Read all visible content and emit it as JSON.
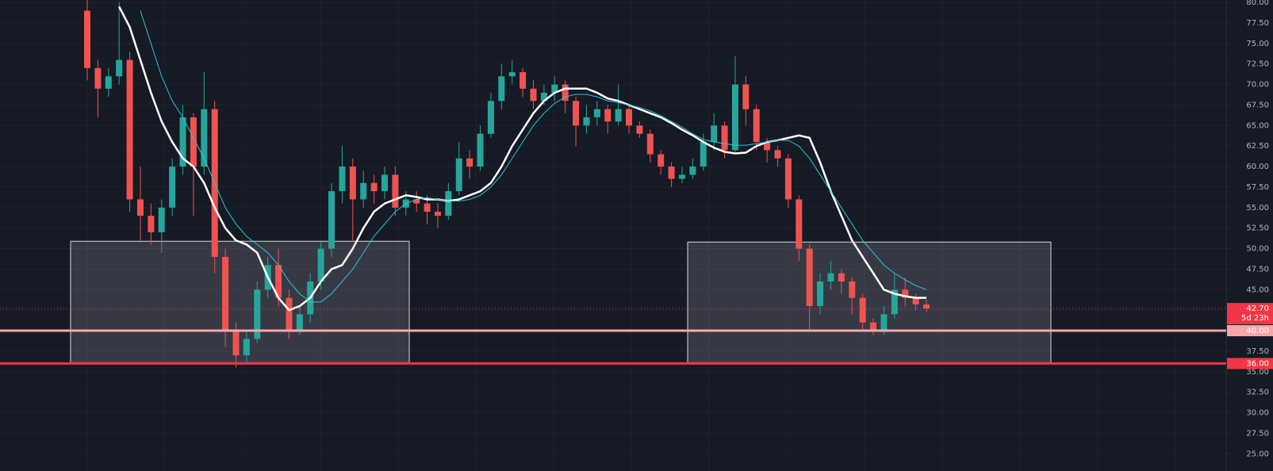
{
  "chart_data": {
    "type": "candlestick",
    "ylim": [
      22.9,
      80.3
    ],
    "yticks": [
      {
        "value": 25,
        "label": "25.00"
      },
      {
        "value": 27.5,
        "label": "27.50"
      },
      {
        "value": 30,
        "label": "30.00"
      },
      {
        "value": 32.5,
        "label": "32.50"
      },
      {
        "value": 35,
        "label": "35.00"
      },
      {
        "value": 37.5,
        "label": "37.50"
      },
      {
        "value": 40,
        "label": "40.00"
      },
      {
        "value": 42.5,
        "label": "42.50"
      },
      {
        "value": 45,
        "label": "45.00"
      },
      {
        "value": 47.5,
        "label": "47.50"
      },
      {
        "value": 50,
        "label": "50.00"
      },
      {
        "value": 52.5,
        "label": "52.50"
      },
      {
        "value": 55,
        "label": "55.00"
      },
      {
        "value": 57.5,
        "label": "57.50"
      },
      {
        "value": 60,
        "label": "60.00"
      },
      {
        "value": 62.5,
        "label": "62.50"
      },
      {
        "value": 65,
        "label": "65.00"
      },
      {
        "value": 67.5,
        "label": "67.50"
      },
      {
        "value": 70,
        "label": "70.00"
      },
      {
        "value": 72.5,
        "label": "72.50"
      },
      {
        "value": 75,
        "label": "75.00"
      },
      {
        "value": 77.5,
        "label": "77.50"
      },
      {
        "value": 80,
        "label": "80.00"
      }
    ],
    "grid": true,
    "up_color": "#26a69a",
    "down_color": "#ef5350",
    "candles": {
      "open": [
        79.0,
        72.0,
        69.5,
        71.0,
        73.0,
        56.0,
        54.0,
        52.0,
        55.0,
        60.0,
        66.0,
        60.0,
        67.0,
        49.0,
        40.0,
        37.0,
        39.0,
        45.0,
        48.0,
        44.0,
        40.0,
        42.0,
        46.0,
        50.0,
        57.0,
        60.0,
        56.0,
        58.0,
        57.0,
        59.0,
        55.0,
        56.0,
        55.5,
        54.5,
        54.0,
        57.0,
        61.0,
        60.0,
        64.0,
        68.0,
        71.0,
        71.5,
        69.5,
        68.0,
        69.0,
        70.0,
        68.0,
        65.0,
        66.0,
        67.0,
        65.5,
        67.0,
        65.0,
        64.0,
        61.5,
        60.0,
        58.5,
        59.0,
        60.0,
        63.0,
        65.0,
        62.0,
        70.0,
        67.0,
        63.0,
        62.0,
        61.0,
        56.0,
        50.0,
        43.0,
        46.0,
        47.0,
        46.0,
        44.0,
        41.0,
        40.0,
        42.0,
        45.0,
        44.0,
        43.2
      ],
      "high": [
        80.5,
        73.0,
        72.0,
        80.0,
        74.0,
        60.0,
        55.5,
        56.0,
        61.0,
        67.5,
        66.5,
        71.5,
        68.0,
        50.0,
        41.0,
        40.0,
        46.0,
        49.0,
        50.0,
        45.0,
        43.0,
        47.0,
        51.0,
        58.0,
        62.5,
        61.0,
        59.5,
        59.0,
        60.0,
        60.0,
        57.0,
        57.0,
        56.5,
        55.5,
        58.0,
        63.0,
        62.0,
        65.0,
        69.0,
        72.5,
        73.0,
        72.0,
        70.5,
        70.0,
        71.0,
        70.5,
        68.5,
        67.5,
        68.0,
        67.5,
        70.0,
        67.5,
        65.5,
        64.5,
        62.0,
        60.5,
        60.0,
        61.0,
        64.0,
        66.5,
        65.5,
        73.5,
        71.0,
        67.5,
        63.5,
        62.5,
        61.5,
        56.5,
        50.5,
        47.0,
        48.5,
        47.5,
        46.5,
        44.5,
        41.5,
        43.0,
        47.0,
        46.5,
        44.5,
        43.8
      ],
      "low": [
        70.5,
        66.0,
        68.5,
        70.0,
        54.5,
        51.0,
        50.5,
        49.5,
        54.0,
        59.0,
        54.0,
        59.0,
        47.0,
        38.0,
        35.5,
        36.0,
        38.5,
        44.0,
        43.0,
        39.0,
        39.5,
        41.0,
        45.0,
        49.0,
        55.5,
        51.0,
        55.0,
        55.5,
        56.0,
        54.0,
        54.0,
        54.5,
        53.0,
        52.5,
        53.5,
        56.5,
        58.5,
        59.5,
        63.5,
        67.0,
        70.0,
        68.5,
        67.0,
        67.5,
        68.0,
        66.5,
        62.5,
        64.0,
        65.0,
        64.0,
        65.0,
        64.0,
        63.5,
        60.5,
        59.0,
        57.5,
        58.0,
        58.5,
        59.5,
        62.0,
        61.0,
        61.5,
        65.0,
        62.0,
        60.5,
        60.0,
        55.0,
        48.5,
        40.0,
        42.0,
        45.0,
        44.5,
        42.0,
        40.0,
        39.5,
        39.5,
        41.5,
        43.0,
        42.5,
        42.3
      ],
      "close": [
        72.0,
        69.5,
        71.0,
        73.0,
        56.0,
        54.0,
        52.0,
        55.0,
        60.0,
        66.0,
        60.0,
        67.0,
        49.0,
        40.0,
        37.0,
        39.0,
        45.0,
        48.0,
        44.0,
        40.0,
        42.0,
        46.0,
        50.0,
        57.0,
        60.0,
        56.0,
        58.0,
        57.0,
        59.0,
        55.0,
        56.0,
        55.5,
        54.5,
        54.0,
        57.0,
        61.0,
        60.0,
        64.0,
        68.0,
        71.0,
        71.5,
        69.5,
        68.0,
        69.0,
        70.0,
        68.0,
        65.0,
        66.0,
        67.0,
        65.5,
        67.0,
        65.0,
        64.0,
        61.5,
        60.0,
        58.5,
        59.0,
        60.0,
        63.0,
        65.0,
        62.0,
        70.0,
        67.0,
        63.0,
        62.0,
        61.0,
        56.0,
        50.0,
        43.0,
        46.0,
        47.0,
        46.0,
        44.0,
        41.0,
        40.0,
        42.0,
        45.0,
        44.0,
        43.2,
        42.7
      ]
    },
    "moving_averages": [
      {
        "color": "#ffffff",
        "values": [
          null,
          null,
          null,
          79.5,
          77,
          73,
          69,
          65.5,
          63,
          61,
          60,
          58,
          55,
          52.5,
          51,
          50.5,
          49.5,
          46.5,
          44,
          42.5,
          43,
          44,
          46,
          47.5,
          48,
          50,
          52.5,
          54.5,
          55.5,
          56,
          56.5,
          56.3,
          56,
          56,
          55.8,
          56,
          56.5,
          57,
          58,
          60,
          62.5,
          64.5,
          66.5,
          68,
          69,
          69.5,
          69.5,
          69.5,
          69,
          68.3,
          68,
          67.5,
          67,
          66.5,
          66,
          65.3,
          64.5,
          63.8,
          63,
          62.3,
          61.8,
          61.6,
          61.7,
          62.5,
          63,
          63.2,
          63.5,
          63.8,
          63.5,
          60.5,
          57,
          54,
          51,
          49,
          47,
          45,
          44.5,
          44.2,
          44,
          44
        ]
      },
      {
        "color": "#26c6da",
        "values": [
          null,
          null,
          null,
          null,
          null,
          79,
          75,
          71,
          68,
          66,
          63.5,
          61,
          58,
          55,
          53,
          51.5,
          50.5,
          49.5,
          48,
          46,
          44.5,
          43.5,
          43.5,
          44.5,
          46,
          47.5,
          49.5,
          51.5,
          53,
          54.5,
          55.5,
          56,
          56.2,
          56,
          55.8,
          55.8,
          56,
          56.5,
          57.5,
          59,
          61,
          63,
          65,
          66.5,
          67.7,
          68.5,
          68.8,
          68.8,
          68.5,
          68,
          67.8,
          67.5,
          67.2,
          66.8,
          66.2,
          65.5,
          64.8,
          64,
          63.3,
          63,
          62.8,
          62.6,
          62.6,
          62.8,
          63,
          63.2,
          63.2,
          62.5,
          61,
          59,
          57,
          55,
          53,
          51,
          49.5,
          48,
          47,
          46.2,
          45.5,
          45
        ]
      }
    ],
    "zones": [
      {
        "top": 50.9,
        "bottom": 36.1
      },
      {
        "top": 50.8,
        "bottom": 36.1
      }
    ],
    "levels": [
      {
        "value": 40,
        "label": "40.00",
        "color": "#f7a7a7"
      },
      {
        "value": 36,
        "label": "36.00",
        "color": "#f23645"
      }
    ],
    "last_price": {
      "value": 42.7,
      "label": "42.70",
      "countdown": "5d 23h",
      "color": "#f23645"
    }
  }
}
